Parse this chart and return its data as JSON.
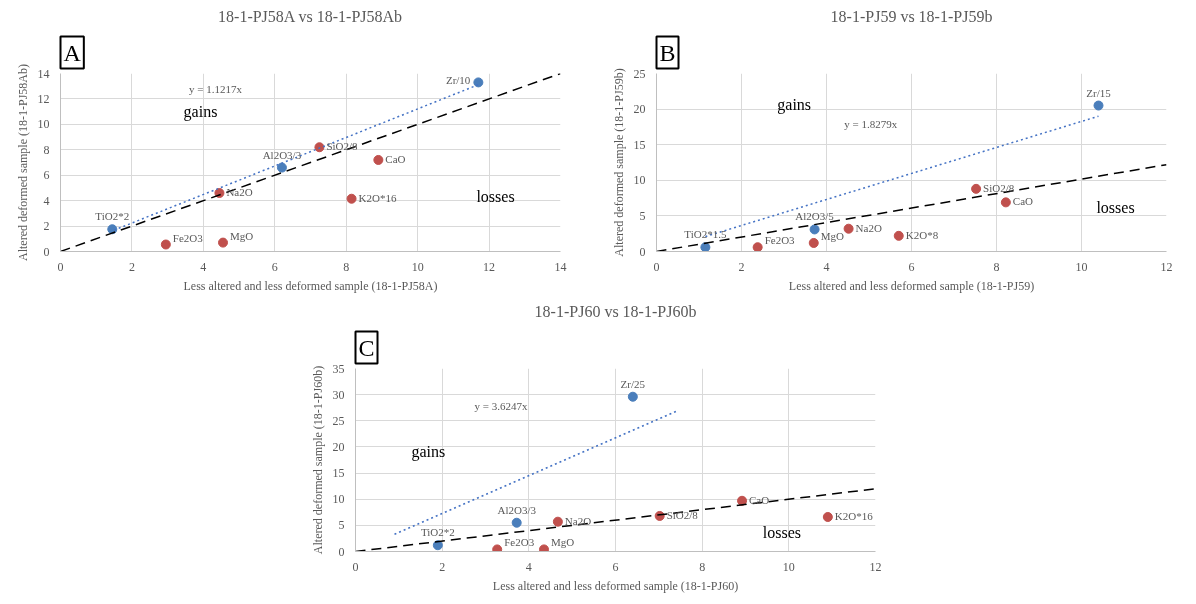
{
  "chart_data": [
    {
      "type": "scatter",
      "title": "18-1-PJ58A vs 18-1-PJ58Ab",
      "xlabel": "Less altered and less deformed sample (18-1-PJ58A)",
      "ylabel": "Altered deformed sample (18-1-PJ58Ab)",
      "xlim": [
        0,
        14
      ],
      "ylim": [
        0,
        14
      ],
      "xticks": [
        0,
        2,
        4,
        6,
        8,
        10,
        12,
        14
      ],
      "yticks": [
        0,
        2,
        4,
        6,
        8,
        10,
        12,
        14
      ],
      "grid": true,
      "marker": "circle",
      "series": [
        {
          "color": "#4a7ebb",
          "x": [
            1.45,
            6.2,
            11.7
          ],
          "values": [
            1.75,
            6.6,
            13.3
          ]
        },
        {
          "color": "#c0504d",
          "x": [
            7.25,
            8.9,
            4.45,
            8.15,
            2.95,
            4.55
          ],
          "values": [
            8.2,
            7.2,
            4.6,
            4.15,
            0.55,
            0.7
          ]
        },
        {
          "type": "line",
          "color": "#4472c4",
          "line_style": "dotted",
          "marker": "none",
          "x": [
            1.5,
            11.7
          ],
          "values": [
            1.68,
            13.12
          ]
        },
        {
          "type": "line",
          "color": "#000000",
          "line_style": "dashed",
          "marker": "none",
          "x": [
            0,
            14
          ],
          "values": [
            0,
            14
          ]
        }
      ],
      "annotations": [
        "A",
        {
          "text": "TiO2*2",
          "x": 1.45,
          "y": 1.75
        },
        {
          "text": "Al2O3/3",
          "x": 6.2,
          "y": 6.6
        },
        {
          "text": "Zr/10",
          "x": 11.7,
          "y": 13.3
        },
        {
          "text": "SiO2/8",
          "x": 7.25,
          "y": 8.2
        },
        {
          "text": "CaO",
          "x": 8.9,
          "y": 7.2
        },
        {
          "text": "Na2O",
          "x": 4.45,
          "y": 4.6
        },
        {
          "text": "K2O*16",
          "x": 8.15,
          "y": 4.15
        },
        {
          "text": "Fe2O3",
          "x": 2.95,
          "y": 0.55
        },
        {
          "text": "MgO",
          "x": 4.55,
          "y": 0.7
        },
        "y = 1.1217x",
        "gains",
        "losses"
      ]
    },
    {
      "type": "scatter",
      "title": "18-1-PJ59 vs 18-1-PJ59b",
      "xlabel": "Less altered and less deformed sample (18-1-PJ59)",
      "ylabel": "Altered deformed sample (18-1-PJ59b)",
      "xlim": [
        0,
        12
      ],
      "ylim": [
        0,
        25
      ],
      "xticks": [
        0,
        2,
        4,
        6,
        8,
        10,
        12
      ],
      "yticks": [
        0,
        5,
        10,
        15,
        20,
        25
      ],
      "grid": true,
      "marker": "circle",
      "series": [
        {
          "color": "#4a7ebb",
          "x": [
            1.15,
            3.72,
            10.4
          ],
          "values": [
            0.6,
            3.1,
            20.5
          ]
        },
        {
          "color": "#c0504d",
          "x": [
            7.52,
            8.22,
            4.52,
            5.7,
            2.38,
            3.7
          ],
          "values": [
            8.8,
            6.9,
            3.2,
            2.2,
            0.6,
            1.2
          ]
        },
        {
          "type": "line",
          "color": "#4472c4",
          "line_style": "dotted",
          "marker": "none",
          "x": [
            1.15,
            10.4
          ],
          "values": [
            2.1,
            19.0
          ]
        },
        {
          "type": "line",
          "color": "#000000",
          "line_style": "dashed",
          "marker": "none",
          "x": [
            0,
            12
          ],
          "values": [
            0,
            12.2
          ]
        }
      ],
      "annotations": [
        "B",
        {
          "text": "TiO2*1.5",
          "x": 1.15,
          "y": 0.6
        },
        {
          "text": "Al2O3/5",
          "x": 3.72,
          "y": 3.1
        },
        {
          "text": "Zr/15",
          "x": 10.4,
          "y": 20.5
        },
        {
          "text": "SiO2/8",
          "x": 7.52,
          "y": 8.8
        },
        {
          "text": "CaO",
          "x": 8.22,
          "y": 6.9
        },
        {
          "text": "Na2O",
          "x": 4.52,
          "y": 3.2
        },
        {
          "text": "K2O*8",
          "x": 5.7,
          "y": 2.2
        },
        {
          "text": "Fe2O3",
          "x": 2.38,
          "y": 0.6
        },
        {
          "text": "MgO",
          "x": 3.7,
          "y": 1.2
        },
        "y = 1.8279x",
        "gains",
        "losses"
      ]
    },
    {
      "type": "scatter",
      "title": "18-1-PJ60 vs 18-1-PJ60b",
      "xlabel": "Less altered and less deformed sample (18-1-PJ60)",
      "ylabel": "Altered deformed sample (18-1-PJ60b)",
      "xlim": [
        0,
        12
      ],
      "ylim": [
        0,
        35
      ],
      "xticks": [
        0,
        2,
        4,
        6,
        8,
        10,
        12
      ],
      "yticks": [
        0,
        5,
        10,
        15,
        20,
        25,
        30,
        35
      ],
      "grid": true,
      "marker": "circle",
      "series": [
        {
          "color": "#4a7ebb",
          "x": [
            1.9,
            3.72,
            6.4
          ],
          "values": [
            1.2,
            5.5,
            29.6
          ]
        },
        {
          "color": "#c0504d",
          "x": [
            4.67,
            7.02,
            8.92,
            10.9,
            3.27,
            4.35
          ],
          "values": [
            5.7,
            6.8,
            9.7,
            6.6,
            0.4,
            0.4
          ]
        },
        {
          "type": "line",
          "color": "#4472c4",
          "line_style": "dotted",
          "marker": "none",
          "x": [
            0.9,
            7.4
          ],
          "values": [
            3.3,
            26.8
          ]
        },
        {
          "type": "line",
          "color": "#000000",
          "line_style": "dashed",
          "marker": "none",
          "x": [
            0,
            12
          ],
          "values": [
            0,
            12
          ]
        }
      ],
      "annotations": [
        "C",
        {
          "text": "TiO2*2",
          "x": 1.9,
          "y": 1.2
        },
        {
          "text": "Al2O3/3",
          "x": 3.72,
          "y": 5.5
        },
        {
          "text": "Zr/25",
          "x": 6.4,
          "y": 29.6
        },
        {
          "text": "SiO2/8",
          "x": 7.02,
          "y": 6.8
        },
        {
          "text": "CaO",
          "x": 8.92,
          "y": 9.7
        },
        {
          "text": "Na2O",
          "x": 4.67,
          "y": 5.7
        },
        {
          "text": "K2O*16",
          "x": 10.9,
          "y": 6.6
        },
        {
          "text": "Fe2O3",
          "x": 3.27,
          "y": 0.4
        },
        {
          "text": "MgO",
          "x": 4.35,
          "y": 0.4
        },
        "y = 3.6247x",
        "gains",
        "losses"
      ]
    }
  ]
}
